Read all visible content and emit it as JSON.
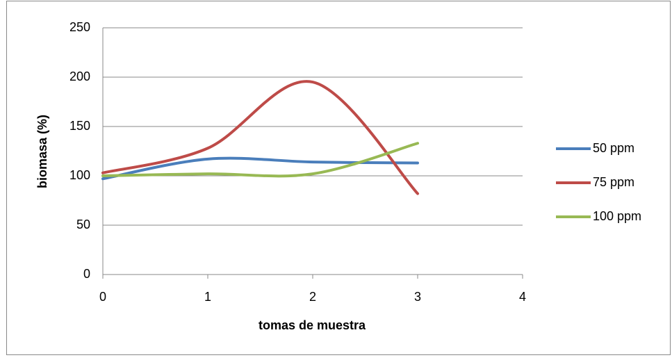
{
  "chart_data": {
    "type": "line",
    "smooth": true,
    "x_label": "tomas de muestra",
    "y_label": "biomasa (%)",
    "x": [
      0,
      1,
      2,
      3
    ],
    "series": [
      {
        "name": "50 ppm",
        "color": "#4a7ebb",
        "values": [
          97,
          117,
          114,
          113
        ]
      },
      {
        "name": "75 ppm",
        "color": "#be4b48",
        "values": [
          103,
          128,
          195,
          82
        ]
      },
      {
        "name": "100 ppm",
        "color": "#98b954",
        "values": [
          100,
          102,
          102,
          133
        ]
      }
    ],
    "xlim": [
      0,
      4
    ],
    "xticks": [
      0,
      1,
      2,
      3,
      4
    ],
    "ylim": [
      0,
      250
    ],
    "yticks": [
      0,
      50,
      100,
      150,
      200,
      250
    ],
    "grid": true,
    "legend": "right"
  }
}
